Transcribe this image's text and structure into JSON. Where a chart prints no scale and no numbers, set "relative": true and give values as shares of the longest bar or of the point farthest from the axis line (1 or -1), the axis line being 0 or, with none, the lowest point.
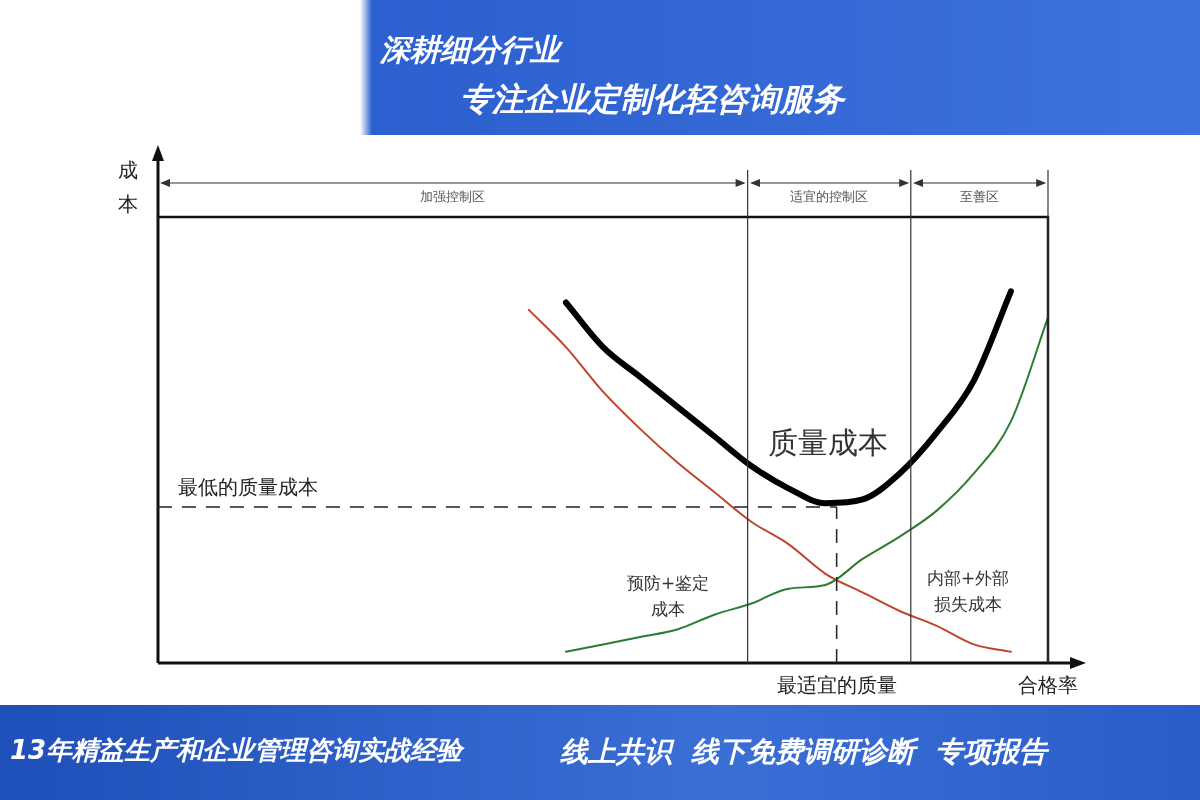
{
  "chart_data": {
    "type": "line",
    "relative": true,
    "ylabel": "成本",
    "xlabel": "合格率",
    "categories": [
      null,
      null,
      null,
      null,
      null,
      null,
      null,
      null,
      null,
      null,
      null,
      null,
      null,
      null,
      null,
      null,
      null,
      null,
      null,
      null,
      null,
      null,
      null,
      null,
      null
    ],
    "series": [
      {
        "name": "质量成本",
        "color": "#000000",
        "values": [
          null,
          null,
          null,
          null,
          null,
          null,
          null,
          null,
          null,
          null,
          null,
          0.97,
          0.85,
          0.77,
          0.69,
          0.61,
          0.53,
          0.47,
          0.43,
          0.44,
          0.51,
          0.62,
          0.76,
          1,
          null
        ]
      },
      {
        "name": "内部+外部损失成本",
        "color": "#c0442c",
        "values": [
          null,
          null,
          null,
          null,
          null,
          null,
          null,
          null,
          null,
          null,
          0.95,
          0.85,
          0.73,
          0.63,
          0.54,
          0.46,
          0.38,
          0.32,
          0.24,
          0.19,
          0.14,
          0.1,
          0.05,
          0.03,
          null
        ]
      },
      {
        "name": "预防+鉴定成本",
        "color": "#2a7d32",
        "values": [
          null,
          null,
          null,
          null,
          null,
          null,
          null,
          null,
          null,
          null,
          null,
          0.03,
          0.05,
          0.07,
          0.09,
          0.13,
          0.16,
          0.2,
          0.21,
          0.28,
          0.34,
          0.41,
          0.51,
          0.65,
          0.93
        ]
      }
    ],
    "ref_lines": [
      {
        "axis": "y",
        "value": 0.42,
        "label": "最低的质量成本",
        "line_style": "dashed"
      }
    ],
    "annotations": [
      "深耕细分行业",
      "专注企业定制化轻咨询服务",
      "13年精益生产和企业管理咨询实战经验",
      "线上共识  线下免费调研诊断  专项报告",
      "加强控制区",
      "适宜的控制区",
      "至善区",
      "最适宜的质量"
    ]
  }
}
